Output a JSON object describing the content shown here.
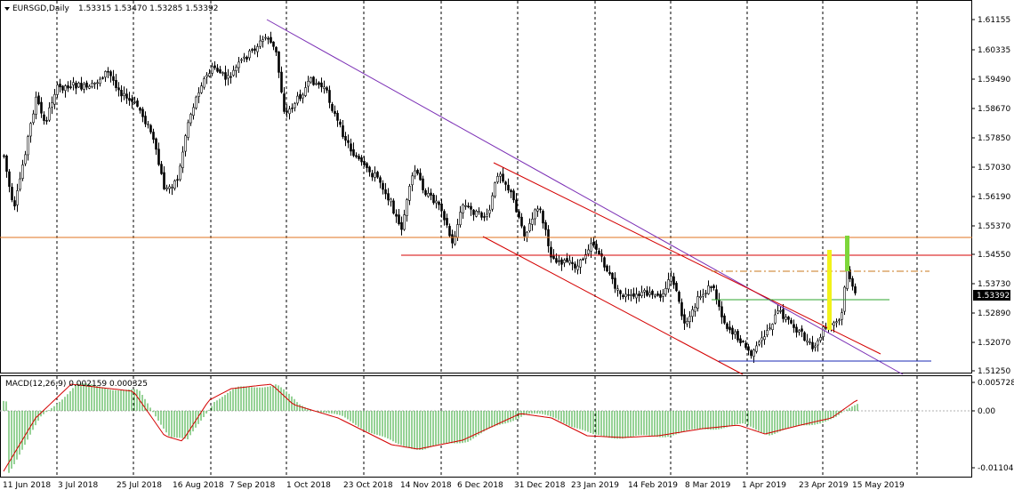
{
  "header": {
    "symbol": "EURSGD,Daily",
    "ohlc": "1.53315 1.53470 1.53285 1.53392",
    "menu_icon": "triangle-down-icon"
  },
  "macd_header": {
    "label": "MACD(12,26,9) 0.002159 0.000325"
  },
  "price_axis": {
    "labels": [
      "1.61155",
      "1.60335",
      "1.59490",
      "1.58670",
      "1.57850",
      "1.57030",
      "1.56190",
      "1.55370",
      "1.54550",
      "1.53730",
      "1.52890",
      "1.52070",
      "1.51250"
    ],
    "current_price": "1.53392"
  },
  "macd_axis": {
    "labels": [
      "0.005728",
      "0.00",
      "-0.011041"
    ]
  },
  "time_axis": {
    "labels": [
      "11 Jun 2018",
      "3 Jul 2018",
      "25 Jul 2018",
      "16 Aug 2018",
      "7 Sep 2018",
      "1 Oct 2018",
      "23 Oct 2018",
      "14 Nov 2018",
      "6 Dec 2018",
      "31 Dec 2018",
      "23 Jan 2019",
      "14 Feb 2019",
      "8 Mar 2019",
      "1 Apr 2019",
      "23 Apr 2019",
      "15 May 2019"
    ]
  },
  "colors": {
    "candle": "#000000",
    "grid": "#000000",
    "resistance_horizontal": "#e0731f",
    "channel_red": "#d40000",
    "trendline_purple": "#7b2fb5",
    "support_blue": "#1a2ab5",
    "green_level": "#2ea52e",
    "dashed_orange": "#c8781e",
    "yellow_bar": "#f2f21a",
    "green_bar": "#7dd63a",
    "macd_histogram": "#2ea52e",
    "macd_signal": "#d40000"
  }
}
